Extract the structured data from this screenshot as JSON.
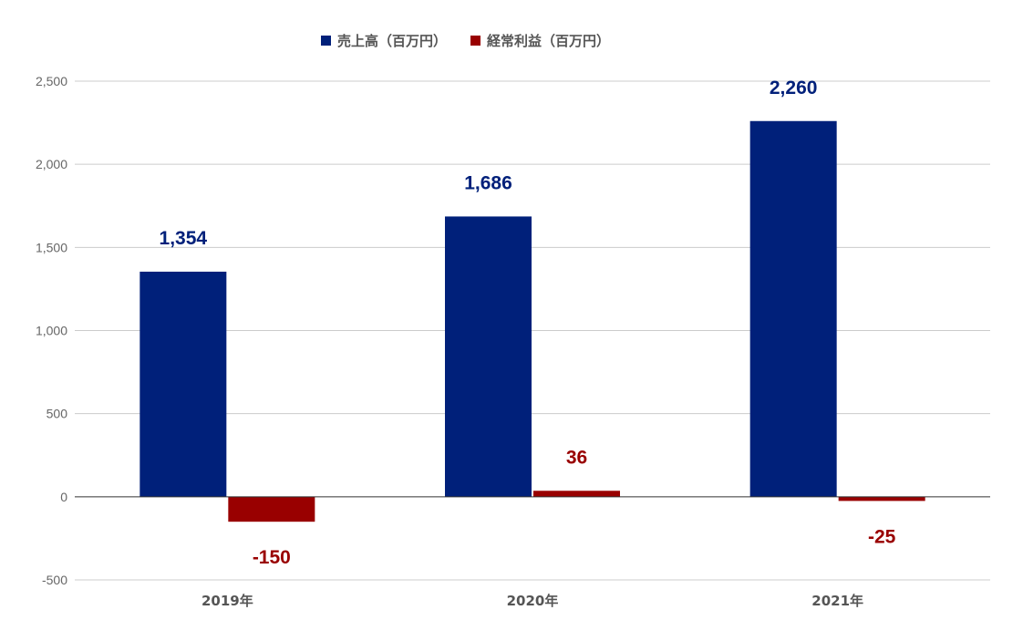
{
  "chart_data": {
    "type": "bar",
    "categories": [
      "2019年",
      "2020年",
      "2021年"
    ],
    "series": [
      {
        "name": "売上高（百万円）",
        "color": "#00207a",
        "values": [
          1354,
          1686,
          2260
        ],
        "labels": [
          "1,354",
          "1,686",
          "2,260"
        ]
      },
      {
        "name": "経常利益（百万円）",
        "color": "#990000",
        "values": [
          -150,
          36,
          -25
        ],
        "labels": [
          "-150",
          "36",
          "-25"
        ]
      }
    ],
    "yticks": [
      -500,
      0,
      500,
      1000,
      1500,
      2000,
      2500
    ],
    "ytick_labels": [
      "-500",
      "0",
      "500",
      "1,000",
      "1,500",
      "2,000",
      "2,500"
    ],
    "ylim": [
      -500,
      2500
    ],
    "grid": true,
    "legend": "top-center",
    "title": "",
    "xlabel": "",
    "ylabel": ""
  }
}
